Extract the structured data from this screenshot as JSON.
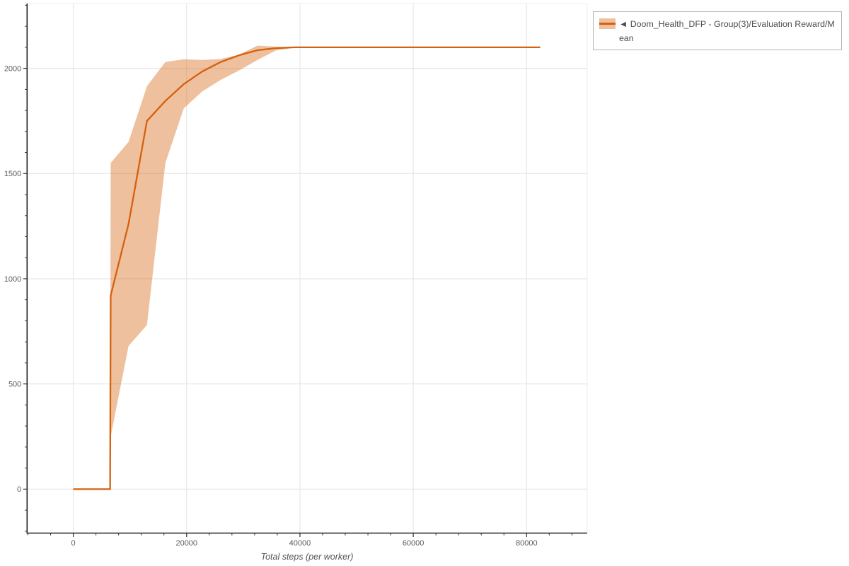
{
  "figure": {
    "background": "#ffffff"
  },
  "colors": {
    "line": "#d4610d",
    "band_fill": "rgba(212,97,13,0.4)",
    "grid": "#e7e7e7",
    "plot_edge": "#ececec",
    "spine": "#222222",
    "tick": "#333333",
    "tick_label": "#595959",
    "axis_title": "#555555",
    "legend_border": "#b3b3b3",
    "legend_text": "#4d4d4d"
  },
  "legend": {
    "marker": "◄",
    "label": "Doom_Health_DFP - Group(3)/Evaluation Reward/Mean"
  },
  "chart_data": {
    "type": "line",
    "title": "",
    "xlabel": "Total steps (per worker)",
    "ylabel": "",
    "xlim": [
      -8150,
      90700
    ],
    "ylim": [
      -209,
      2308
    ],
    "x_ticks_major": [
      0,
      20000,
      40000,
      60000,
      80000
    ],
    "x_tick_labels": [
      "0",
      "20000",
      "40000",
      "60000",
      "80000"
    ],
    "x_minor_step": 4000,
    "x_minor_range": [
      -8000,
      88000
    ],
    "y_ticks_major": [
      0,
      500,
      1000,
      1500,
      2000
    ],
    "y_tick_labels": [
      "0",
      "500",
      "1000",
      "1500",
      "2000"
    ],
    "y_minor_step": 100,
    "y_minor_range": [
      -200,
      2300
    ],
    "grid": "major-only",
    "legend_position": "top-right-outside",
    "series": [
      {
        "name": "Doom_Health_DFP - Group(3)/Evaluation Reward/Mean",
        "color": "#d4610d",
        "x": [
          0,
          3250,
          6500,
          6600,
          9750,
          13000,
          16250,
          19500,
          22750,
          26000,
          29250,
          32500,
          35750,
          39000,
          45500,
          52000,
          58500,
          65000,
          71500,
          78000,
          82400
        ],
        "mean": [
          0,
          0,
          0,
          920,
          1260,
          1750,
          1845,
          1925,
          1985,
          2030,
          2062,
          2086,
          2096,
          2100,
          2100,
          2100,
          2100,
          2100,
          2100,
          2100,
          2100
        ],
        "lower": [
          0,
          0,
          0,
          250,
          680,
          780,
          1550,
          1810,
          1890,
          1945,
          1990,
          2040,
          2085,
          2098,
          2100,
          2100,
          2100,
          2100,
          2100,
          2100,
          2100
        ],
        "upper": [
          0,
          0,
          0,
          1550,
          1650,
          1915,
          2030,
          2043,
          2040,
          2044,
          2065,
          2108,
          2103,
          2101,
          2100,
          2100,
          2100,
          2100,
          2100,
          2100,
          2100
        ]
      }
    ]
  }
}
